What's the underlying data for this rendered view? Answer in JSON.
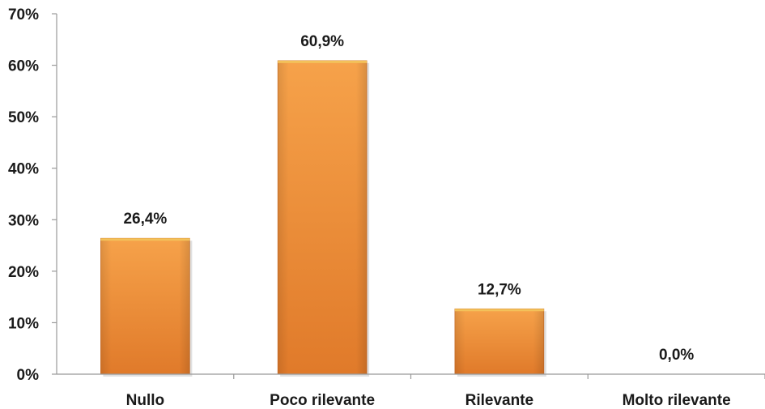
{
  "chart_data": {
    "type": "bar",
    "title": "",
    "xlabel": "",
    "ylabel": "",
    "categories": [
      "Nullo",
      "Poco rilevante",
      "Rilevante",
      "Molto rilevante"
    ],
    "values": [
      26.4,
      60.9,
      12.7,
      0.0
    ],
    "data_labels": [
      "26,4%",
      "60,9%",
      "12,7%",
      "0,0%"
    ],
    "ylim": [
      0,
      70
    ],
    "yticks": [
      0,
      10,
      20,
      30,
      40,
      50,
      60,
      70
    ],
    "ytick_labels": [
      "0%",
      "10%",
      "20%",
      "30%",
      "40%",
      "50%",
      "60%",
      "70%"
    ],
    "grid": false,
    "legend": "none",
    "colors": {
      "bar_light": "#f6a24a",
      "bar_dark": "#e07a2a",
      "bar_top": "#f3c15a",
      "bar_edge": "#c9651e",
      "axis": "#999999"
    }
  }
}
